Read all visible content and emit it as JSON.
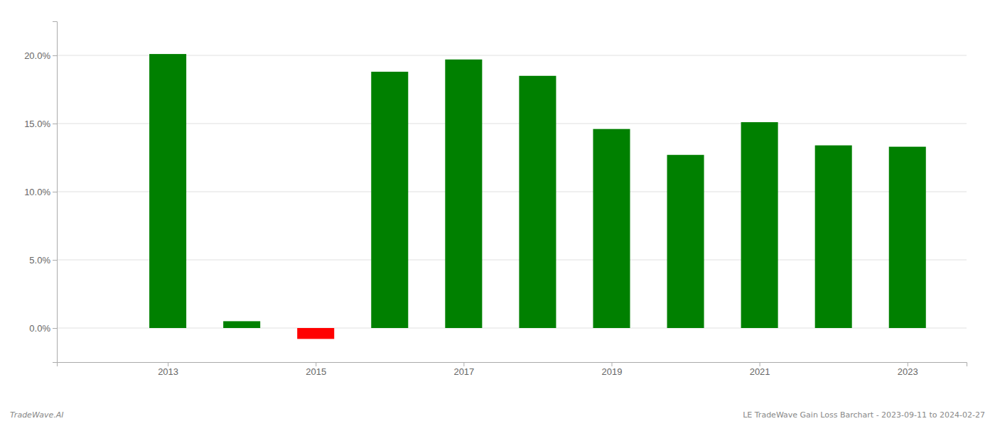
{
  "chart_data": {
    "type": "bar",
    "x": [
      2013,
      2014,
      2015,
      2016,
      2017,
      2018,
      2019,
      2020,
      2021,
      2022,
      2023
    ],
    "values": [
      0.201,
      0.005,
      -0.008,
      0.188,
      0.197,
      0.185,
      0.146,
      0.127,
      0.151,
      0.134,
      0.133
    ],
    "colors": [
      "#008000",
      "#008000",
      "#ff0000",
      "#008000",
      "#008000",
      "#008000",
      "#008000",
      "#008000",
      "#008000",
      "#008000",
      "#008000"
    ],
    "xlim": [
      2011.5,
      2023.8
    ],
    "xticks": [
      2013,
      2015,
      2017,
      2019,
      2021,
      2023
    ],
    "ylim": [
      -0.025,
      0.225
    ],
    "yticks": [
      {
        "value": 0.0,
        "label": "0.0%"
      },
      {
        "value": 0.05,
        "label": "5.0%"
      },
      {
        "value": 0.1,
        "label": "10.0%"
      },
      {
        "value": 0.15,
        "label": "15.0%"
      },
      {
        "value": 0.2,
        "label": "20.0%"
      }
    ],
    "grid": true,
    "annotations": [
      "TradeWave.AI",
      "LE TradeWave Gain Loss Barchart - 2023-09-11 to 2024-02-27"
    ]
  }
}
